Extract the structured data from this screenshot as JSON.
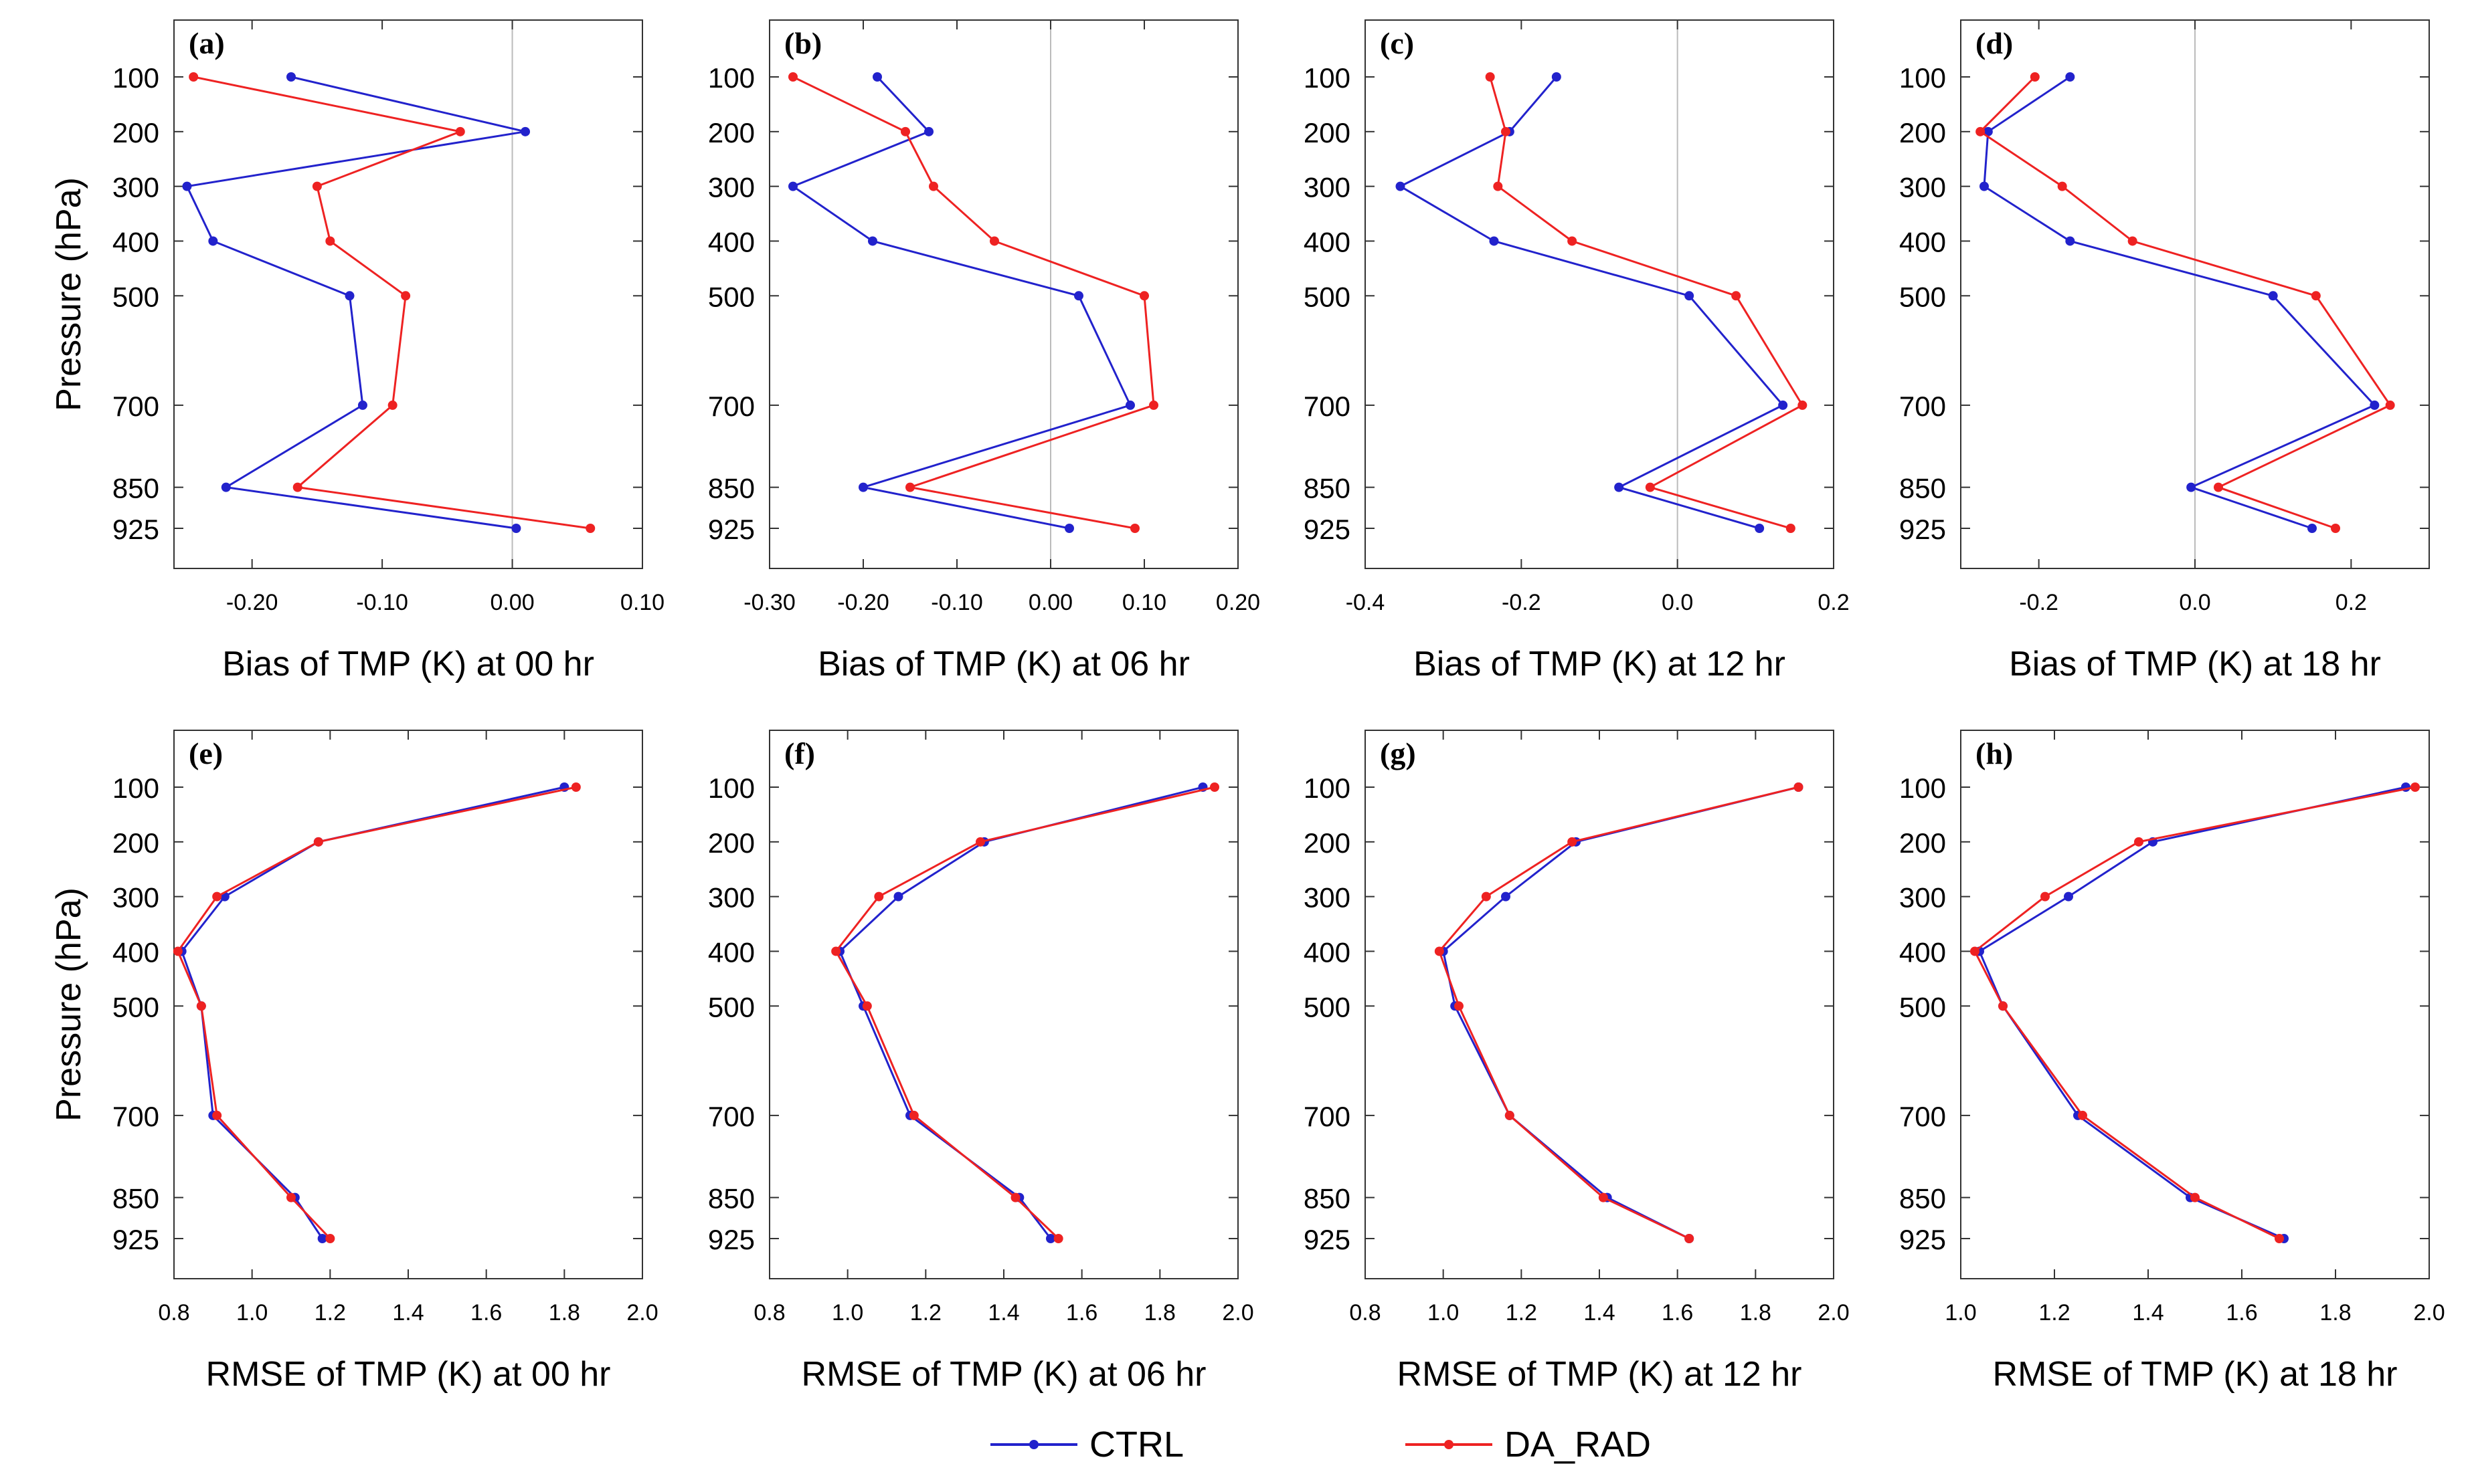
{
  "colors": {
    "ctrl": "#2222cc",
    "da_rad": "#ee2222",
    "zero_line": "#bbbbbb",
    "axis": "#333333"
  },
  "legend": {
    "ctrl_label": "CTRL",
    "da_rad_label": "DA_RAD"
  },
  "chart_data": [
    {
      "panel": "(a)",
      "type": "line",
      "xlabel": "Bias of TMP (K) at 00 hr",
      "ylabel": "Pressure (hPa)",
      "xlim": [
        -0.26,
        0.1
      ],
      "xticks": [
        -0.2,
        -0.1,
        0.0,
        0.1
      ],
      "zero_line": true,
      "y": [
        100,
        200,
        300,
        400,
        500,
        700,
        850,
        925
      ],
      "series": [
        {
          "name": "CTRL",
          "values": [
            -0.17,
            0.01,
            -0.25,
            -0.23,
            -0.125,
            -0.115,
            -0.22,
            0.003
          ]
        },
        {
          "name": "DA_RAD",
          "values": [
            -0.245,
            -0.04,
            -0.15,
            -0.14,
            -0.082,
            -0.092,
            -0.165,
            0.06
          ]
        }
      ]
    },
    {
      "panel": "(b)",
      "type": "line",
      "xlabel": "Bias of TMP (K) at 06 hr",
      "ylabel": "Pressure (hPa)",
      "xlim": [
        -0.3,
        0.2
      ],
      "xticks": [
        -0.3,
        -0.2,
        -0.1,
        0.0,
        0.1,
        0.2
      ],
      "zero_line": true,
      "y": [
        100,
        200,
        300,
        400,
        500,
        700,
        850,
        925
      ],
      "series": [
        {
          "name": "CTRL",
          "values": [
            -0.185,
            -0.13,
            -0.275,
            -0.19,
            0.03,
            0.085,
            -0.2,
            0.02
          ]
        },
        {
          "name": "DA_RAD",
          "values": [
            -0.275,
            -0.155,
            -0.125,
            -0.06,
            0.1,
            0.11,
            -0.15,
            0.09
          ]
        }
      ]
    },
    {
      "panel": "(c)",
      "type": "line",
      "xlabel": "Bias of TMP (K) at 12 hr",
      "ylabel": "Pressure (hPa)",
      "xlim": [
        -0.4,
        0.2
      ],
      "xticks": [
        -0.4,
        -0.2,
        0.0,
        0.2
      ],
      "zero_line": true,
      "y": [
        100,
        200,
        300,
        400,
        500,
        700,
        850,
        925
      ],
      "series": [
        {
          "name": "CTRL",
          "values": [
            -0.155,
            -0.215,
            -0.355,
            -0.235,
            0.015,
            0.135,
            -0.075,
            0.105
          ]
        },
        {
          "name": "DA_RAD",
          "values": [
            -0.24,
            -0.22,
            -0.23,
            -0.135,
            0.075,
            0.16,
            -0.035,
            0.145
          ]
        }
      ]
    },
    {
      "panel": "(d)",
      "type": "line",
      "xlabel": "Bias of TMP (K) at 18 hr",
      "ylabel": "Pressure (hPa)",
      "xlim": [
        -0.3,
        0.3
      ],
      "xticks": [
        -0.2,
        0.0,
        0.2
      ],
      "zero_line": true,
      "y": [
        100,
        200,
        300,
        400,
        500,
        700,
        850,
        925
      ],
      "series": [
        {
          "name": "CTRL",
          "values": [
            -0.16,
            -0.265,
            -0.27,
            -0.16,
            0.1,
            0.23,
            -0.005,
            0.15
          ]
        },
        {
          "name": "DA_RAD",
          "values": [
            -0.205,
            -0.275,
            -0.17,
            -0.08,
            0.155,
            0.25,
            0.03,
            0.18
          ]
        }
      ]
    },
    {
      "panel": "(e)",
      "type": "line",
      "xlabel": "RMSE of TMP (K) at 00 hr",
      "ylabel": "Pressure (hPa)",
      "xlim": [
        0.8,
        2.0
      ],
      "xticks": [
        0.8,
        1.0,
        1.2,
        1.4,
        1.6,
        1.8,
        2.0
      ],
      "zero_line": false,
      "y": [
        100,
        200,
        300,
        400,
        500,
        700,
        850,
        925
      ],
      "series": [
        {
          "name": "CTRL",
          "values": [
            1.8,
            1.17,
            0.93,
            0.82,
            0.87,
            0.9,
            1.11,
            1.18
          ]
        },
        {
          "name": "DA_RAD",
          "values": [
            1.83,
            1.17,
            0.91,
            0.81,
            0.87,
            0.91,
            1.1,
            1.2
          ]
        }
      ]
    },
    {
      "panel": "(f)",
      "type": "line",
      "xlabel": "RMSE of TMP (K) at 06 hr",
      "ylabel": "Pressure (hPa)",
      "xlim": [
        0.8,
        2.0
      ],
      "xticks": [
        0.8,
        1.0,
        1.2,
        1.4,
        1.6,
        1.8,
        2.0
      ],
      "zero_line": false,
      "y": [
        100,
        200,
        300,
        400,
        500,
        700,
        850,
        925
      ],
      "series": [
        {
          "name": "CTRL",
          "values": [
            1.91,
            1.35,
            1.13,
            0.98,
            1.04,
            1.16,
            1.44,
            1.52
          ]
        },
        {
          "name": "DA_RAD",
          "values": [
            1.94,
            1.34,
            1.08,
            0.97,
            1.05,
            1.17,
            1.43,
            1.54
          ]
        }
      ]
    },
    {
      "panel": "(g)",
      "type": "line",
      "xlabel": "RMSE of TMP (K) at 12 hr",
      "ylabel": "Pressure (hPa)",
      "xlim": [
        0.8,
        2.0
      ],
      "xticks": [
        0.8,
        1.0,
        1.2,
        1.4,
        1.6,
        1.8,
        2.0
      ],
      "zero_line": false,
      "y": [
        100,
        200,
        300,
        400,
        500,
        700,
        850,
        925
      ],
      "series": [
        {
          "name": "CTRL",
          "values": [
            1.91,
            1.34,
            1.16,
            1.0,
            1.03,
            1.17,
            1.42,
            1.63
          ]
        },
        {
          "name": "DA_RAD",
          "values": [
            1.91,
            1.33,
            1.11,
            0.99,
            1.04,
            1.17,
            1.41,
            1.63
          ]
        }
      ]
    },
    {
      "panel": "(h)",
      "type": "line",
      "xlabel": "RMSE of TMP (K) at 18 hr",
      "ylabel": "Pressure (hPa)",
      "xlim": [
        1.0,
        2.0
      ],
      "xticks": [
        1.0,
        1.2,
        1.4,
        1.6,
        1.8,
        2.0
      ],
      "zero_line": false,
      "y": [
        100,
        200,
        300,
        400,
        500,
        700,
        850,
        925
      ],
      "series": [
        {
          "name": "CTRL",
          "values": [
            1.95,
            1.41,
            1.23,
            1.04,
            1.09,
            1.25,
            1.49,
            1.69
          ]
        },
        {
          "name": "DA_RAD",
          "values": [
            1.97,
            1.38,
            1.18,
            1.03,
            1.09,
            1.26,
            1.5,
            1.68
          ]
        }
      ]
    }
  ]
}
